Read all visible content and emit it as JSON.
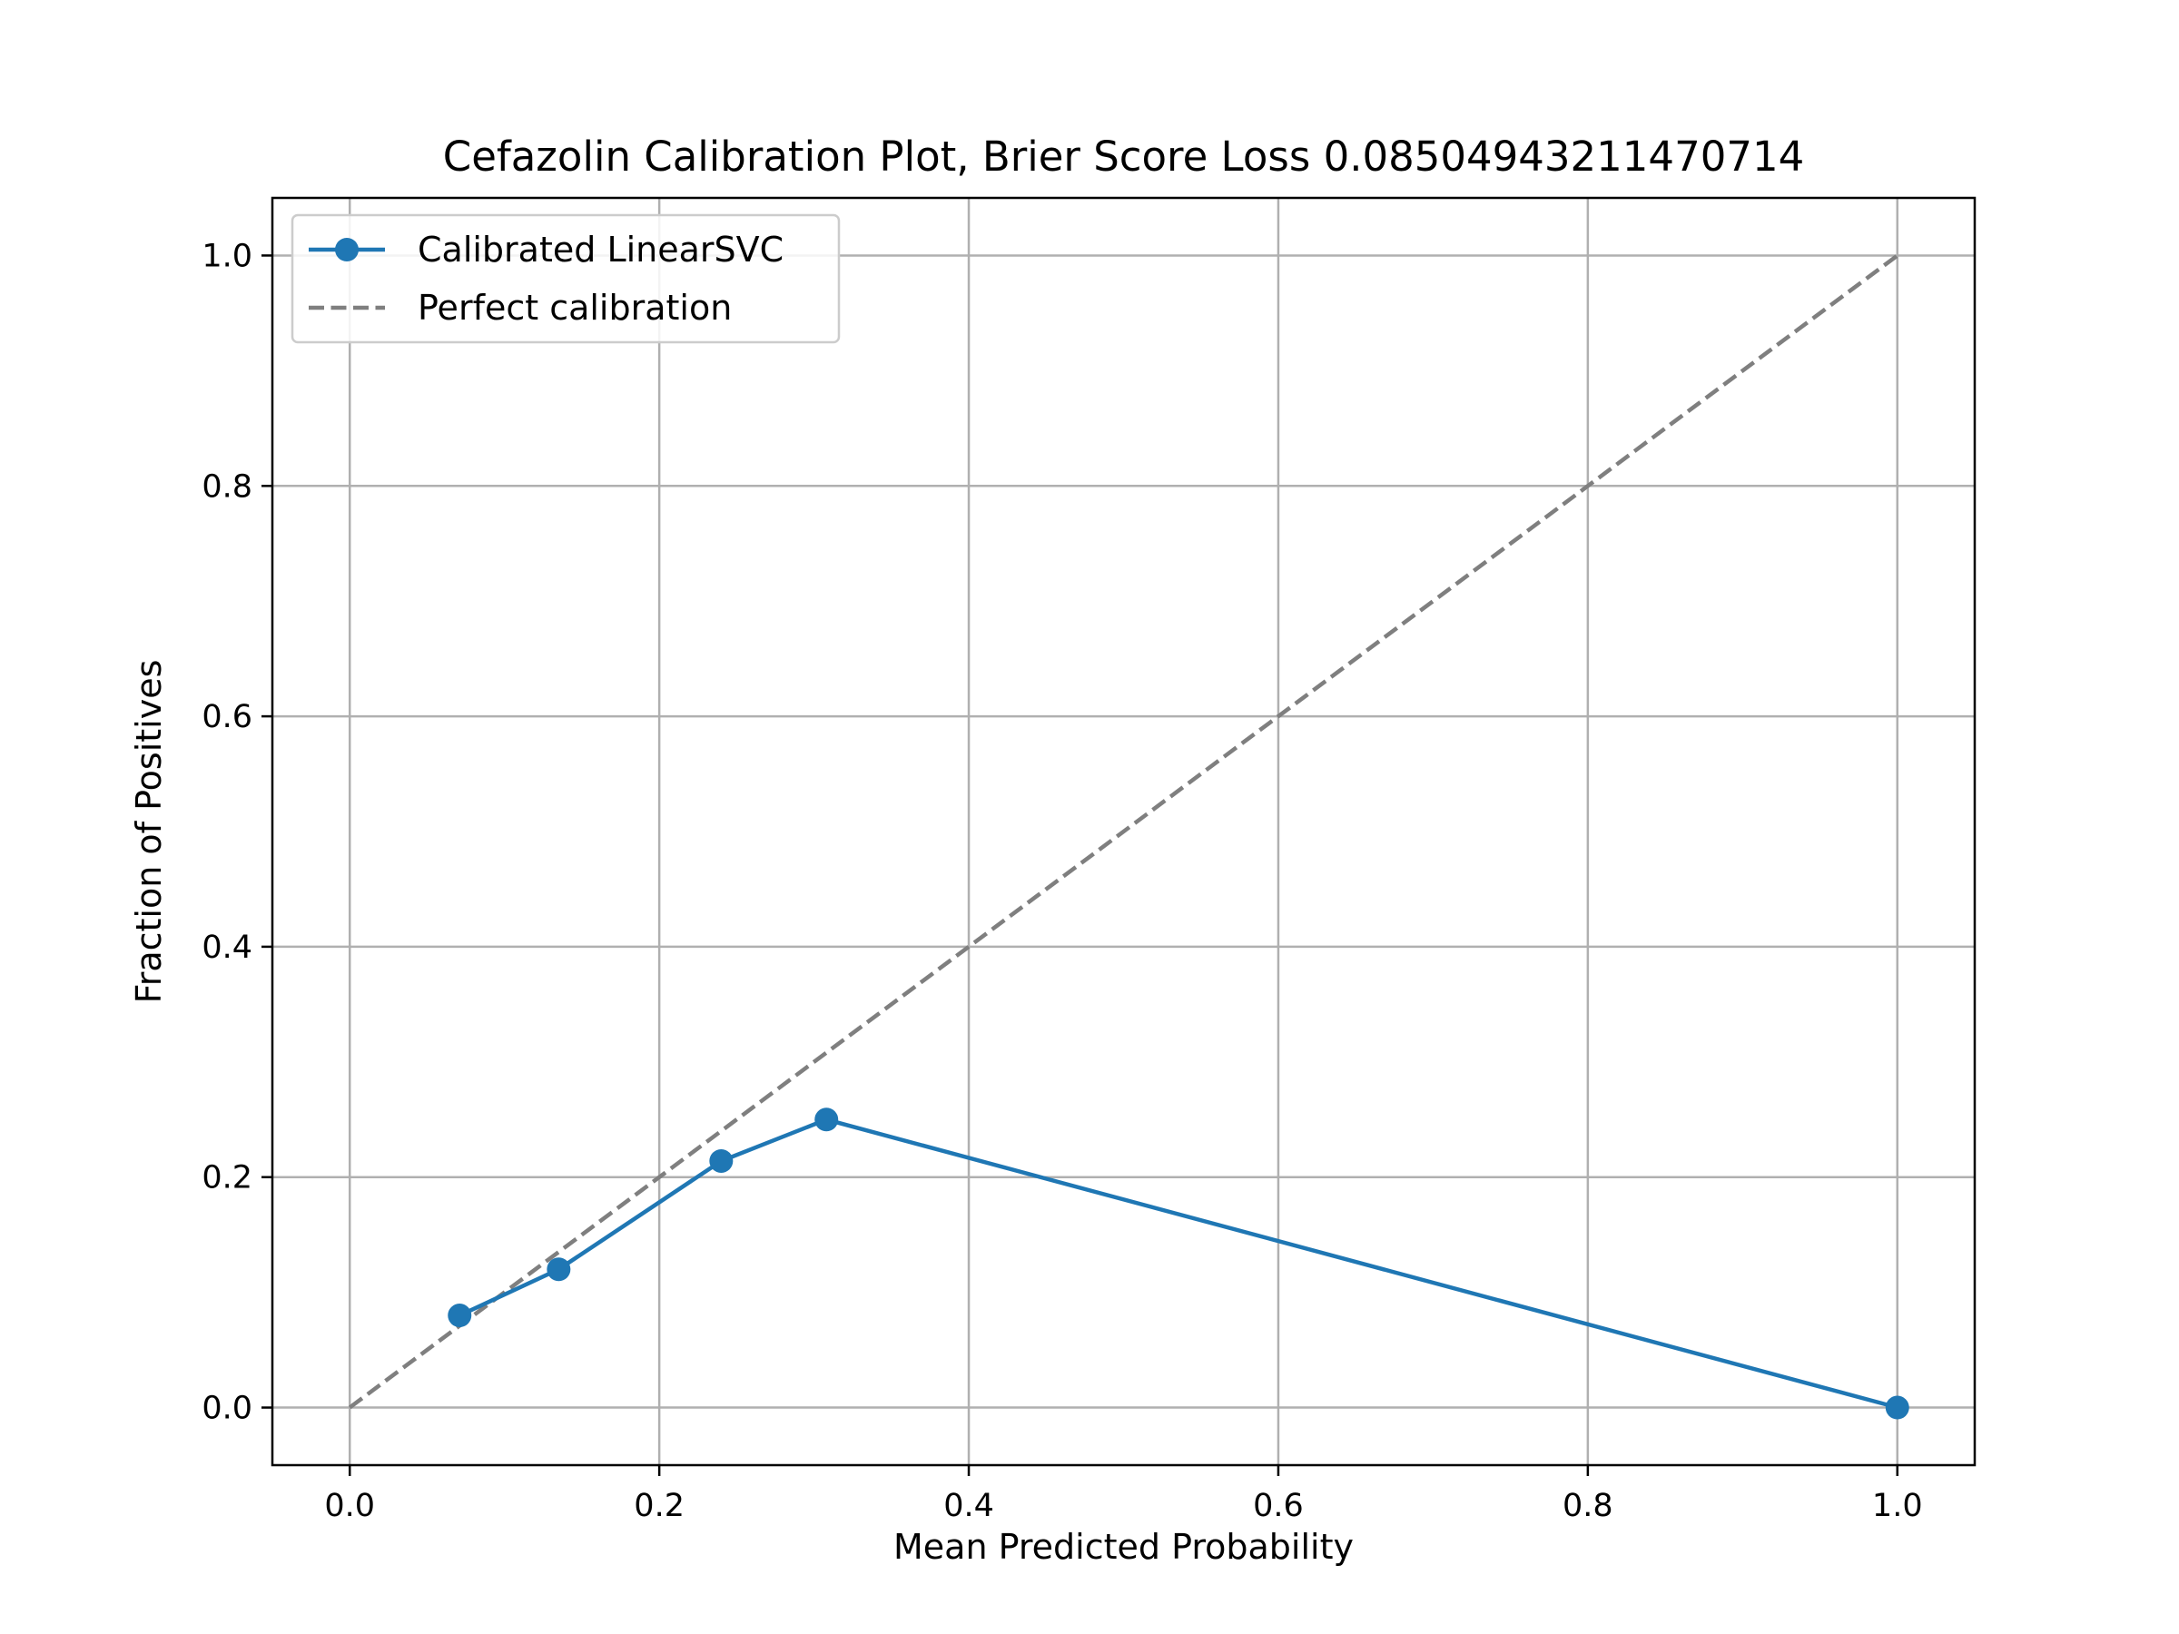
{
  "chart_data": {
    "type": "line",
    "title": "Cefazolin Calibration Plot, Brier Score Loss 0.08504943211470714",
    "xlabel": "Mean Predicted Probability",
    "ylabel": "Fraction of Positives",
    "xlim": [
      -0.05,
      1.05
    ],
    "ylim": [
      -0.05,
      1.05
    ],
    "grid": true,
    "legend_position": "upper-left",
    "xticks": [
      0.0,
      0.2,
      0.4,
      0.6,
      0.8,
      1.0
    ],
    "xtick_labels": [
      "0.0",
      "0.2",
      "0.4",
      "0.6",
      "0.8",
      "1.0"
    ],
    "yticks": [
      0.0,
      0.2,
      0.4,
      0.6,
      0.8,
      1.0
    ],
    "ytick_labels": [
      "0.0",
      "0.2",
      "0.4",
      "0.6",
      "0.8",
      "1.0"
    ],
    "series": [
      {
        "name": "Calibrated LinearSVC",
        "style": "solid-with-markers",
        "color": "#1f77b4",
        "x": [
          0.071,
          0.135,
          0.24,
          0.308,
          1.0
        ],
        "y": [
          0.08,
          0.12,
          0.214,
          0.25,
          0.0
        ]
      },
      {
        "name": "Perfect calibration",
        "style": "dashed",
        "color": "#7f7f7f",
        "x": [
          0.0,
          1.0
        ],
        "y": [
          0.0,
          1.0
        ]
      }
    ]
  }
}
